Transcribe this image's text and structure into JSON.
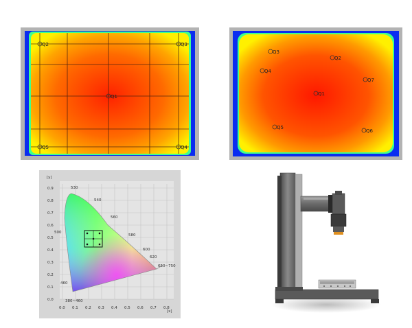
{
  "panel_left": {
    "points": [
      {
        "label": "Q2"
      },
      {
        "label": "Q3"
      },
      {
        "label": "Q1"
      },
      {
        "label": "Q5"
      },
      {
        "label": "Q4"
      }
    ]
  },
  "panel_right": {
    "points": [
      {
        "label": "Q3"
      },
      {
        "label": "Q2"
      },
      {
        "label": "Q4"
      },
      {
        "label": "Q7"
      },
      {
        "label": "Q1"
      },
      {
        "label": "Q5"
      },
      {
        "label": "Q6"
      }
    ]
  },
  "cie": {
    "y_axis_label": "[y]",
    "x_axis_label": "[x]",
    "y_ticks": [
      "0.9",
      "0.8",
      "0.7",
      "0.6",
      "0.5",
      "0.4",
      "0.3",
      "0.2",
      "0.1",
      "0.0"
    ],
    "x_ticks": [
      "0.0",
      "0.1",
      "0.2",
      "0.3",
      "0.4",
      "0.5",
      "0.6",
      "0.7",
      "0.8"
    ],
    "wavelength_labels": {
      "w530": "530",
      "w540": "540",
      "w500": "500",
      "w560": "560",
      "w580": "580",
      "w600": "600",
      "w620": "620",
      "w650": "650~750",
      "w460": "460",
      "w380": "380~460"
    }
  },
  "colors": {
    "heatmap_border": "#b3b3b3",
    "heatmap_blue": "#0a2cf0",
    "heatmap_center": "#ff1c00",
    "heatmap_edge": "#ffe800",
    "device_body": "#6f6f6f"
  }
}
